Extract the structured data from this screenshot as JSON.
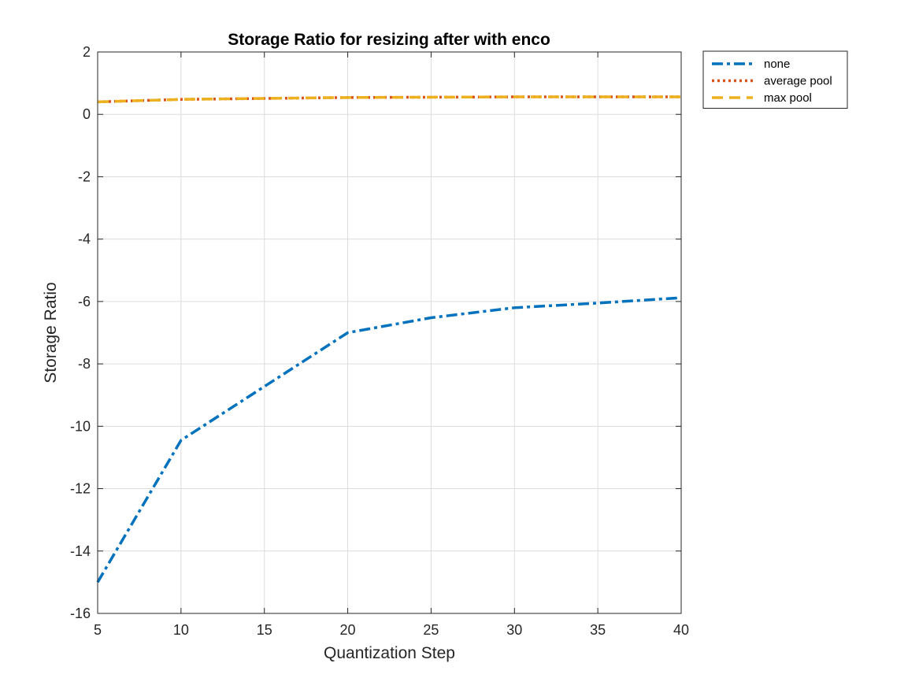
{
  "chart_data": {
    "type": "line",
    "title": "Storage Ratio for resizing after with enco",
    "xlabel": "Quantization Step",
    "ylabel": "Storage Ratio",
    "xlim": [
      5,
      40
    ],
    "ylim": [
      -16,
      2
    ],
    "xticks": [
      5,
      10,
      15,
      20,
      25,
      30,
      35,
      40
    ],
    "yticks": [
      -16,
      -14,
      -12,
      -10,
      -8,
      -6,
      -4,
      -2,
      0,
      2
    ],
    "grid": true,
    "legend_position": "outside-top-right",
    "x": [
      5,
      10,
      20,
      25,
      30,
      35,
      40
    ],
    "series": [
      {
        "name": "none",
        "values": [
          -15.0,
          -10.45,
          -7.0,
          -6.52,
          -6.2,
          -6.05,
          -5.88
        ],
        "color": "#0072BD",
        "dash": "dash-dot"
      },
      {
        "name": "average pool",
        "values": [
          0.4,
          0.48,
          0.54,
          0.55,
          0.56,
          0.56,
          0.56
        ],
        "color": "#D95319",
        "dash": "dotted"
      },
      {
        "name": "max pool",
        "values": [
          0.4,
          0.48,
          0.54,
          0.55,
          0.56,
          0.56,
          0.56
        ],
        "color": "#EDB120",
        "dash": "dashed"
      }
    ]
  }
}
